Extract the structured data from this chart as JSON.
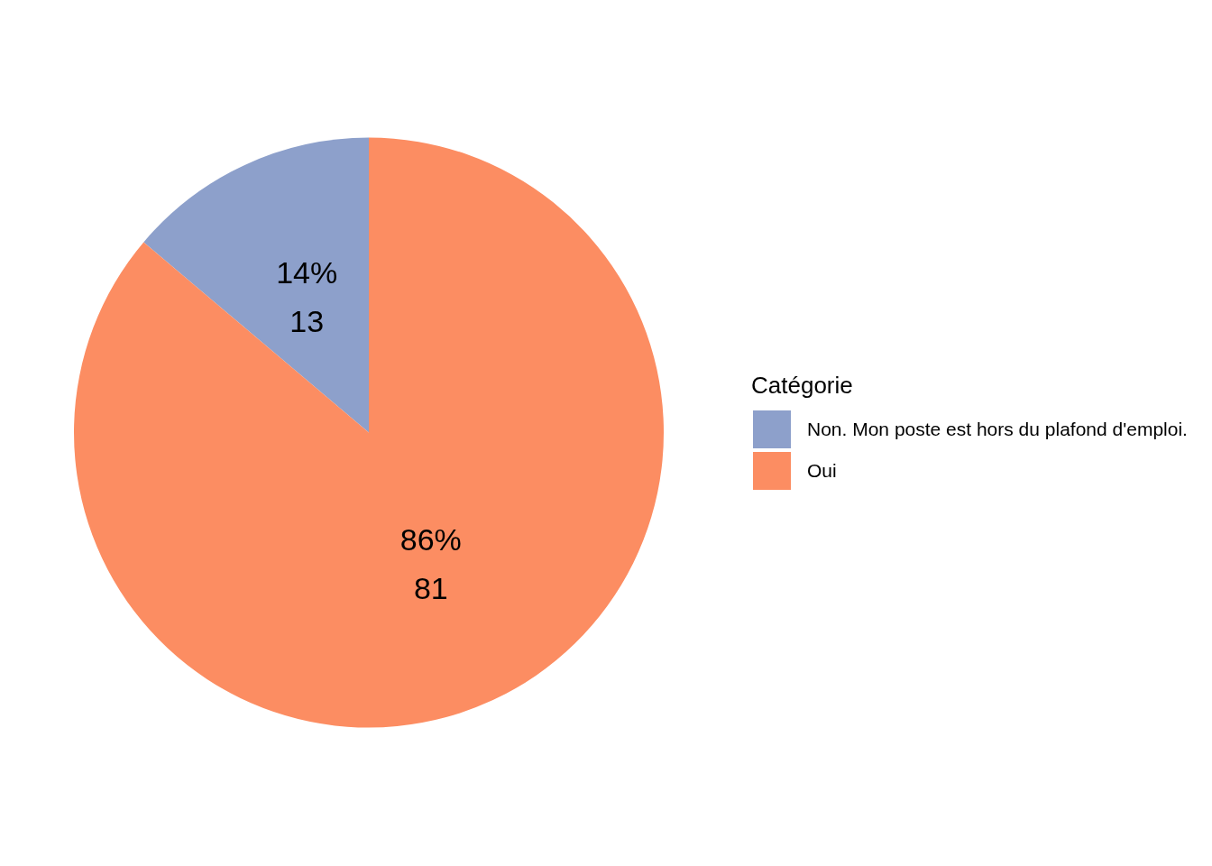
{
  "chart_data": {
    "type": "pie",
    "legend_title": "Catégorie",
    "legend": "right",
    "categories": [
      "Non. Mon poste est hors du plafond d'emploi.",
      "Oui"
    ],
    "values": [
      13,
      81
    ],
    "colors": [
      "#8da0cb",
      "#fc8d62"
    ],
    "value_labels": [
      "14%\n13",
      "86%\n81"
    ]
  }
}
